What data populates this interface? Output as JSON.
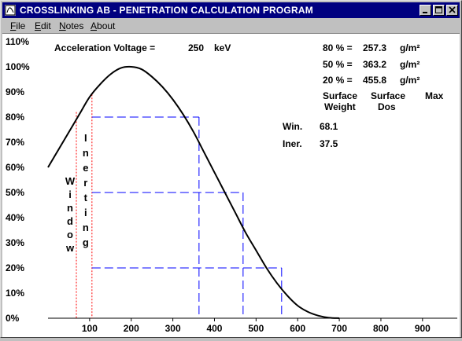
{
  "window": {
    "title": "CROSSLINKING AB - PENETRATION CALCULATION PROGRAM"
  },
  "menu": {
    "file_pre": "",
    "file_u": "F",
    "file_post": "ile",
    "edit_pre": "",
    "edit_u": "E",
    "edit_post": "dit",
    "notes_pre": "",
    "notes_u": "N",
    "notes_post": "otes",
    "about_pre": "",
    "about_u": "A",
    "about_post": "bout"
  },
  "info": {
    "voltage_label": "Acceleration Voltage =",
    "voltage_value": "250",
    "voltage_unit": "keV",
    "rows": [
      {
        "pct": "80 % =",
        "value": "257.3",
        "unit": "g/m²"
      },
      {
        "pct": "50 % =",
        "value": "363.2",
        "unit": "g/m²"
      },
      {
        "pct": "20 % =",
        "value": "455.8",
        "unit": "g/m²"
      }
    ],
    "col1_line1": "Surface",
    "col1_line2": "Weight",
    "col2_line1": "Surface",
    "col2_line2": "Dos",
    "col3_line1": "Max",
    "win_label": "Win.",
    "win_value": "68.1",
    "iner_label": "Iner.",
    "iner_value": "37.5",
    "window_letters": [
      "W",
      "i",
      "n",
      "d",
      "o",
      "w"
    ],
    "inerting_letters": [
      "I",
      "n",
      "e",
      "r",
      "t",
      "i",
      "n",
      "g"
    ]
  },
  "chart_data": {
    "type": "line",
    "y_ticks": [
      "0%",
      "10%",
      "20%",
      "30%",
      "40%",
      "50%",
      "60%",
      "70%",
      "80%",
      "90%",
      "100%",
      "110%"
    ],
    "x_ticks": [
      "100",
      "200",
      "300",
      "400",
      "500",
      "600",
      "700",
      "800",
      "900"
    ],
    "xlim": [
      0,
      1000
    ],
    "ylim": [
      0,
      110
    ],
    "curve": {
      "x": [
        0,
        25,
        50,
        75,
        100,
        125,
        150,
        175,
        200,
        225,
        250,
        275,
        300,
        325,
        350,
        375,
        400,
        425,
        450,
        475,
        500,
        525,
        550,
        575,
        600,
        625,
        650,
        675,
        700
      ],
      "y": [
        60,
        67,
        74,
        81,
        88,
        93,
        97,
        99.5,
        100,
        99,
        96,
        92,
        87,
        81,
        74,
        66,
        58,
        50,
        42,
        34,
        27,
        20,
        14,
        9,
        5,
        2.5,
        1,
        0.2,
        0
      ]
    },
    "window_x": 68.1,
    "inerting_x": 105.6,
    "levels": [
      {
        "y": 80,
        "x": 362.9
      },
      {
        "y": 50,
        "x": 468.8
      },
      {
        "y": 20,
        "x": 561.4
      }
    ]
  }
}
